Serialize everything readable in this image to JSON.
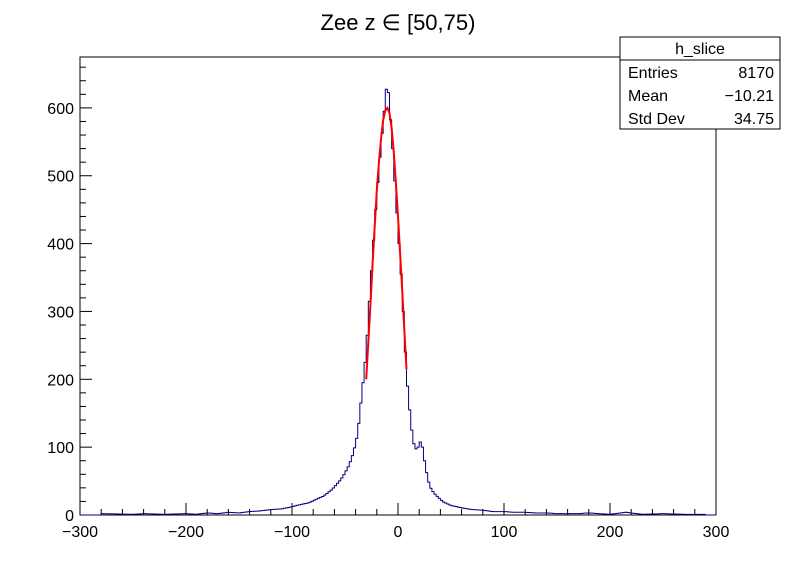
{
  "chart_data": {
    "type": "histogram",
    "title": "Zee z ∈ [50,75)",
    "xlabel": "",
    "ylabel": "",
    "xlim": [
      -300,
      300
    ],
    "ylim": [
      0,
      675
    ],
    "grid": false,
    "xticks": [
      "−300",
      "−200",
      "−100",
      "0",
      "100",
      "200",
      "300"
    ],
    "xtick_values": [
      -300,
      -200,
      -100,
      0,
      100,
      200,
      300
    ],
    "yticks": [
      "0",
      "100",
      "200",
      "300",
      "400",
      "500",
      "600"
    ],
    "ytick_values": [
      0,
      100,
      200,
      300,
      400,
      500,
      600
    ],
    "stats_box": {
      "name": "h_slice",
      "rows": [
        {
          "label": "Entries",
          "value": "8170"
        },
        {
          "label": "Mean",
          "value": "−10.21"
        },
        {
          "label": "Std Dev",
          "value": "34.75"
        }
      ],
      "placement": "top-right"
    },
    "series": [
      {
        "kind": "histogram",
        "color": "#000080",
        "bin_width": 2,
        "points": [
          [
            -280,
            2
          ],
          [
            -250,
            1
          ],
          [
            -240,
            2
          ],
          [
            -220,
            1
          ],
          [
            -200,
            2
          ],
          [
            -190,
            1
          ],
          [
            -180,
            3
          ],
          [
            -170,
            2
          ],
          [
            -160,
            4
          ],
          [
            -150,
            3
          ],
          [
            -140,
            5
          ],
          [
            -130,
            6
          ],
          [
            -120,
            8
          ],
          [
            -110,
            9
          ],
          [
            -100,
            12
          ],
          [
            -96,
            14
          ],
          [
            -90,
            16
          ],
          [
            -84,
            18
          ],
          [
            -80,
            21
          ],
          [
            -76,
            24
          ],
          [
            -70,
            28
          ],
          [
            -66,
            33
          ],
          [
            -62,
            38
          ],
          [
            -58,
            45
          ],
          [
            -54,
            52
          ],
          [
            -50,
            62
          ],
          [
            -46,
            74
          ],
          [
            -42,
            92
          ],
          [
            -38,
            120
          ],
          [
            -36,
            150
          ],
          [
            -34,
            180
          ],
          [
            -32,
            210
          ],
          [
            -30,
            240
          ],
          [
            -28,
            290
          ],
          [
            -26,
            340
          ],
          [
            -24,
            380
          ],
          [
            -22,
            430
          ],
          [
            -20,
            470
          ],
          [
            -18,
            510
          ],
          [
            -16,
            545
          ],
          [
            -14,
            580
          ],
          [
            -12,
            610
          ],
          [
            -10,
            645
          ],
          [
            -8,
            600
          ],
          [
            -6,
            565
          ],
          [
            -4,
            515
          ],
          [
            -2,
            470
          ],
          [
            0,
            420
          ],
          [
            2,
            380
          ],
          [
            4,
            330
          ],
          [
            6,
            270
          ],
          [
            8,
            210
          ],
          [
            10,
            170
          ],
          [
            12,
            140
          ],
          [
            14,
            110
          ],
          [
            16,
            100
          ],
          [
            18,
            95
          ],
          [
            20,
            105
          ],
          [
            22,
            110
          ],
          [
            24,
            90
          ],
          [
            26,
            70
          ],
          [
            28,
            55
          ],
          [
            30,
            42
          ],
          [
            34,
            32
          ],
          [
            38,
            26
          ],
          [
            42,
            20
          ],
          [
            46,
            17
          ],
          [
            50,
            14
          ],
          [
            56,
            12
          ],
          [
            62,
            10
          ],
          [
            70,
            8
          ],
          [
            80,
            7
          ],
          [
            90,
            5
          ],
          [
            100,
            5
          ],
          [
            110,
            4
          ],
          [
            120,
            4
          ],
          [
            130,
            3
          ],
          [
            140,
            3
          ],
          [
            150,
            2
          ],
          [
            160,
            2
          ],
          [
            170,
            2
          ],
          [
            180,
            3
          ],
          [
            190,
            2
          ],
          [
            200,
            1
          ],
          [
            215,
            4
          ],
          [
            230,
            1
          ],
          [
            250,
            2
          ],
          [
            270,
            1
          ],
          [
            290,
            1
          ]
        ]
      },
      {
        "kind": "fit",
        "color": "#ff0000",
        "x_range": [
          -30,
          8
        ],
        "points": [
          [
            -30,
            200
          ],
          [
            -28,
            255
          ],
          [
            -26,
            310
          ],
          [
            -24,
            370
          ],
          [
            -22,
            425
          ],
          [
            -20,
            478
          ],
          [
            -18,
            520
          ],
          [
            -16,
            555
          ],
          [
            -14,
            582
          ],
          [
            -12,
            596
          ],
          [
            -10,
            600
          ],
          [
            -8,
            592
          ],
          [
            -6,
            570
          ],
          [
            -4,
            535
          ],
          [
            -2,
            490
          ],
          [
            0,
            440
          ],
          [
            2,
            385
          ],
          [
            4,
            330
          ],
          [
            6,
            272
          ],
          [
            8,
            215
          ]
        ]
      }
    ]
  }
}
